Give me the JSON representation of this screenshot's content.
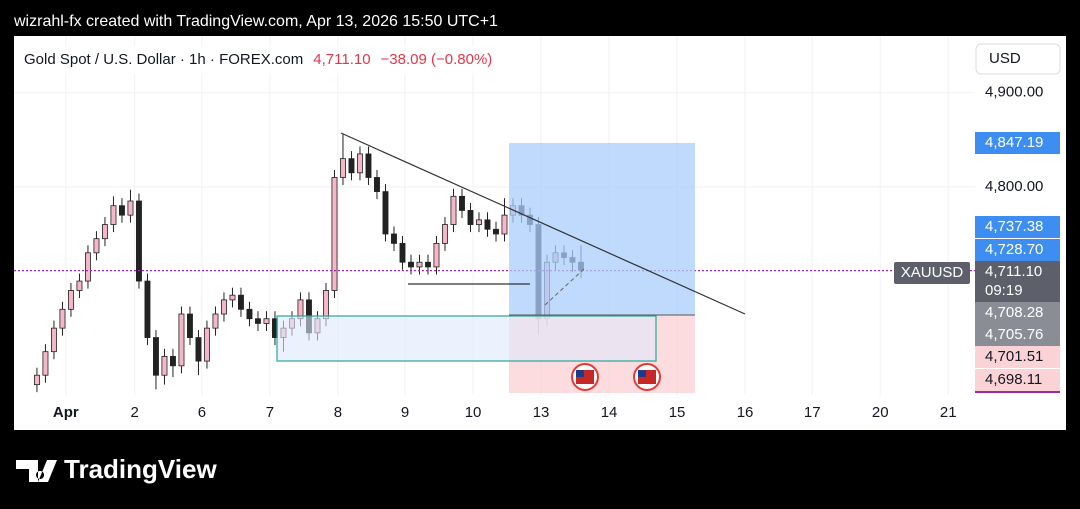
{
  "header": {
    "caption": "wizrahl-fx created with TradingView.com, Apr 13, 2026 15:50 UTC+1"
  },
  "footer": {
    "brand": "TradingView"
  },
  "chart_data": {
    "type": "candlestick",
    "title": "Gold Spot / U.S. Dollar · 1h · FOREX.com",
    "last_price": "4,711.10",
    "change": "−38.09 (−0.80%)",
    "currency": "USD",
    "symbol": "XAUUSD",
    "countdown": "09:19",
    "up_color": "#f5b7c8",
    "down_color": "#222222",
    "grid": true,
    "categories": [
      null,
      null,
      null,
      null,
      null,
      null,
      null,
      null,
      null,
      null,
      null,
      null,
      null,
      null,
      null,
      null,
      null,
      null,
      null,
      null,
      null,
      null,
      null,
      null,
      null,
      null,
      null,
      null,
      null,
      null,
      null,
      null,
      null,
      null,
      null,
      null,
      null,
      null,
      null,
      null,
      null,
      null,
      null,
      null,
      null,
      null,
      null,
      null,
      null,
      null,
      null,
      null,
      null,
      null,
      null,
      null,
      null,
      null,
      null,
      null,
      null,
      null,
      null,
      null,
      null
    ],
    "open": [
      4590,
      4600,
      4625,
      4650,
      4670,
      4690,
      4700,
      4730,
      4745,
      4760,
      4780,
      4770,
      4785,
      4700,
      4640,
      4600,
      4620,
      4610,
      4665,
      4640,
      4615,
      4650,
      4665,
      4680,
      4685,
      4670,
      4660,
      4655,
      4660,
      4640,
      4650,
      4660,
      4680,
      4645,
      4660,
      4690,
      4810,
      4830,
      4815,
      4835,
      4810,
      4795,
      4750,
      4740,
      4720,
      4715,
      4720,
      4715,
      4740,
      4760,
      4790,
      4775,
      4760,
      4765,
      4755,
      4750,
      4770,
      4780,
      4770,
      4760,
      4660,
      4720,
      4730,
      4725,
      4720
    ],
    "high": [
      4608,
      4633,
      4658,
      4678,
      4698,
      4708,
      4738,
      4753,
      4768,
      4790,
      4788,
      4797,
      4793,
      4708,
      4648,
      4628,
      4628,
      4673,
      4673,
      4648,
      4658,
      4673,
      4688,
      4693,
      4693,
      4678,
      4668,
      4668,
      4668,
      4658,
      4668,
      4688,
      4688,
      4668,
      4698,
      4818,
      4856,
      4838,
      4843,
      4843,
      4818,
      4803,
      4758,
      4748,
      4728,
      4728,
      4728,
      4748,
      4768,
      4798,
      4798,
      4783,
      4773,
      4773,
      4763,
      4788,
      4788,
      4788,
      4778,
      4768,
      4728,
      4738,
      4738,
      4733,
      4738
    ],
    "low": [
      4582,
      4592,
      4617,
      4642,
      4662,
      4682,
      4692,
      4722,
      4737,
      4752,
      4762,
      4762,
      4692,
      4632,
      4585,
      4590,
      4598,
      4602,
      4632,
      4600,
      4607,
      4642,
      4657,
      4672,
      4662,
      4652,
      4647,
      4647,
      4632,
      4625,
      4642,
      4652,
      4637,
      4637,
      4652,
      4682,
      4802,
      4807,
      4807,
      4802,
      4787,
      4742,
      4732,
      4712,
      4707,
      4707,
      4707,
      4707,
      4732,
      4752,
      4767,
      4752,
      4752,
      4747,
      4742,
      4742,
      4762,
      4762,
      4752,
      4643,
      4652,
      4712,
      4717,
      4710,
      4703
    ],
    "close": [
      4600,
      4625,
      4650,
      4670,
      4690,
      4700,
      4730,
      4745,
      4760,
      4780,
      4770,
      4785,
      4700,
      4640,
      4600,
      4620,
      4610,
      4665,
      4640,
      4615,
      4650,
      4665,
      4680,
      4685,
      4670,
      4660,
      4655,
      4660,
      4640,
      4650,
      4660,
      4680,
      4645,
      4660,
      4690,
      4810,
      4830,
      4815,
      4835,
      4810,
      4795,
      4750,
      4740,
      4720,
      4715,
      4720,
      4715,
      4740,
      4760,
      4790,
      4775,
      4760,
      4765,
      4755,
      4750,
      4770,
      4780,
      4770,
      4760,
      4660,
      4720,
      4730,
      4725,
      4720,
      4711.1
    ],
    "xlim": [
      -2.7,
      110.35
    ],
    "xticks": [
      {
        "value": 3.4,
        "label": "Apr"
      },
      {
        "value": 11.5,
        "label": "2"
      },
      {
        "value": 19.4,
        "label": "6"
      },
      {
        "value": 27.4,
        "label": "7"
      },
      {
        "value": 35.4,
        "label": "8"
      },
      {
        "value": 43.3,
        "label": "9"
      },
      {
        "value": 51.3,
        "label": "10"
      },
      {
        "value": 59.3,
        "label": "13"
      },
      {
        "value": 67.3,
        "label": "14"
      },
      {
        "value": 75.3,
        "label": "15"
      },
      {
        "value": 83.3,
        "label": "16"
      },
      {
        "value": 91.2,
        "label": "17"
      },
      {
        "value": 99.2,
        "label": "20"
      },
      {
        "value": 107.2,
        "label": "21"
      }
    ],
    "ylim": [
      4579,
      4956
    ],
    "yticks": [
      {
        "value": 4900,
        "label": "4,900.00"
      },
      {
        "value": 4800,
        "label": "4,800.00"
      }
    ],
    "price_labels": [
      {
        "value": 4847.19,
        "label": "4,847.19",
        "color": "#3d8ef0"
      },
      {
        "value": 4737.38,
        "label": "4,737.38",
        "color": "#3d8ef0"
      },
      {
        "value": 4728.7,
        "label": "4,728.70",
        "color": "#3d8ef0"
      },
      {
        "value": 4711.1,
        "label": "4,711.10",
        "color": "#5d606b"
      },
      {
        "value": 4708.28,
        "label": "4,708.28",
        "color": "#8a8d96"
      },
      {
        "value": 4705.76,
        "label": "4,705.76",
        "color": "#8a8d96"
      },
      {
        "value": 4701.51,
        "label": "4,701.51",
        "color": "#fbd3d6"
      },
      {
        "value": 4698.11,
        "label": "4,698.11",
        "color": "#fbd3d6"
      }
    ]
  }
}
